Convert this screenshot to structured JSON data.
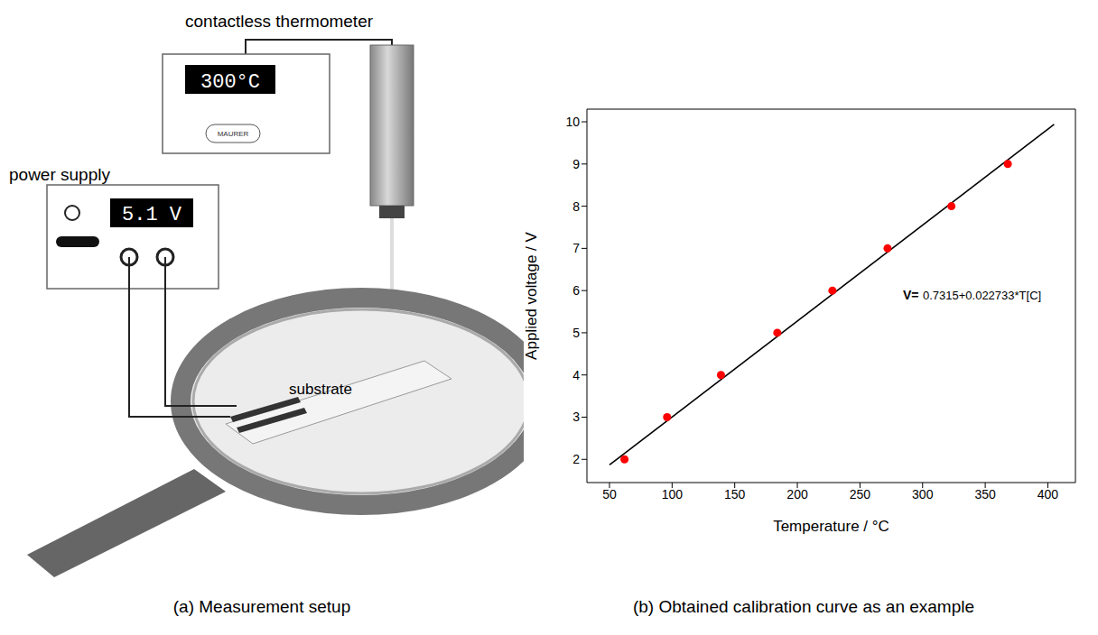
{
  "diagram": {
    "thermometer": {
      "label": "contactless thermometer",
      "display": "300°C",
      "brand": "MAURER"
    },
    "power_supply": {
      "label": "power supply",
      "display": "5.1 V"
    },
    "sample": {
      "label": "substrate"
    }
  },
  "captions": [
    "(a) Measurement setup",
    "(b) Obtained calibration curve as an example"
  ],
  "chart_data": {
    "type": "scatter",
    "x_label": "Temperature / °C",
    "y_label": "Applied voltage / V",
    "x": [
      62,
      96,
      139,
      184,
      228,
      272,
      323,
      368
    ],
    "values": [
      2,
      3,
      4,
      5,
      6,
      7,
      8,
      9
    ],
    "color": "#ff0000",
    "marker": "circle",
    "fit_line": {
      "type": "line",
      "x": [
        50,
        405
      ],
      "values": [
        1.868,
        9.938
      ],
      "color": "#000000",
      "line_style": "solid"
    },
    "annotation": "V= 0.7315+0.022733*T[C]",
    "xlim": [
      32,
      422
    ],
    "xticks": [
      50,
      100,
      150,
      200,
      250,
      300,
      350,
      400
    ],
    "ylim": [
      1.45,
      10.3
    ],
    "yticks": [
      2,
      3,
      4,
      5,
      6,
      7,
      8,
      9,
      10
    ],
    "grid": false
  }
}
